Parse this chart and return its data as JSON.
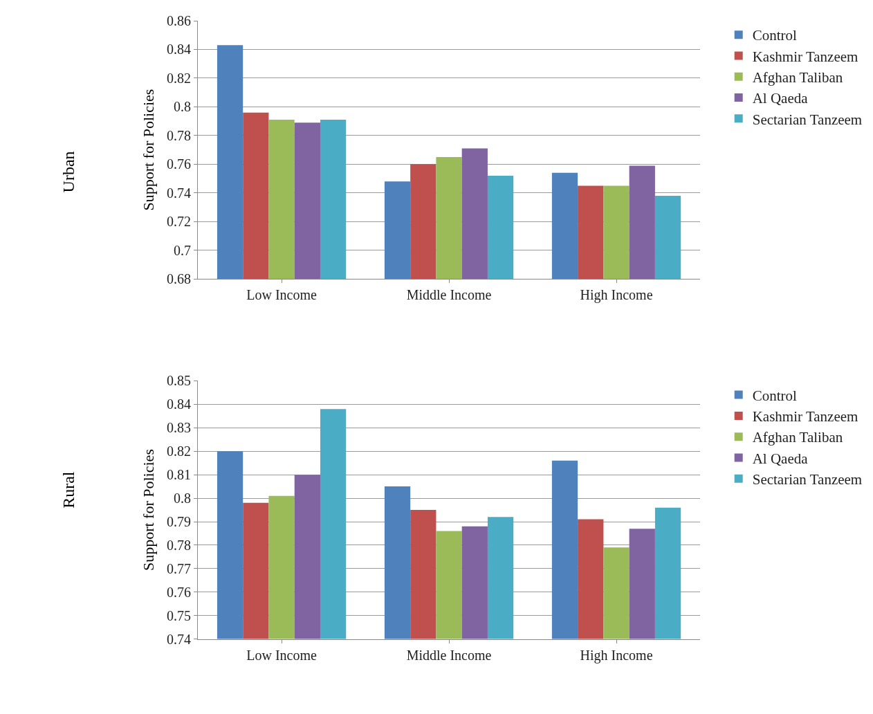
{
  "chart_data": [
    {
      "type": "bar",
      "ylabel": "Support for Policies",
      "annotations": [
        "Urban"
      ],
      "categories": [
        "Low Income",
        "Middle Income",
        "High Income"
      ],
      "series": [
        {
          "name": "Control",
          "color": "#4f81bd",
          "values": [
            0.843,
            0.748,
            0.754
          ]
        },
        {
          "name": "Kashmir Tanzeem",
          "color": "#c0504d",
          "values": [
            0.796,
            0.76,
            0.745
          ]
        },
        {
          "name": "Afghan Taliban",
          "color": "#9bbb59",
          "values": [
            0.791,
            0.765,
            0.745
          ]
        },
        {
          "name": "Al Qaeda",
          "color": "#8064a2",
          "values": [
            0.789,
            0.771,
            0.759
          ]
        },
        {
          "name": "Sectarian Tanzeem",
          "color": "#4bacc6",
          "values": [
            0.791,
            0.752,
            0.738
          ]
        }
      ],
      "ylim": [
        0.68,
        0.86
      ],
      "yticks": [
        0.68,
        0.7,
        0.72,
        0.74,
        0.76,
        0.78,
        0.8,
        0.82,
        0.84,
        0.86
      ],
      "grid": "y",
      "legend": "right"
    },
    {
      "type": "bar",
      "ylabel": "Support for Policies",
      "annotations": [
        "Rural"
      ],
      "categories": [
        "Low Income",
        "Middle Income",
        "High Income"
      ],
      "series": [
        {
          "name": "Control",
          "color": "#4f81bd",
          "values": [
            0.82,
            0.805,
            0.816
          ]
        },
        {
          "name": "Kashmir Tanzeem",
          "color": "#c0504d",
          "values": [
            0.798,
            0.795,
            0.791
          ]
        },
        {
          "name": "Afghan Taliban",
          "color": "#9bbb59",
          "values": [
            0.801,
            0.786,
            0.779
          ]
        },
        {
          "name": "Al Qaeda",
          "color": "#8064a2",
          "values": [
            0.81,
            0.788,
            0.787
          ]
        },
        {
          "name": "Sectarian Tanzeem",
          "color": "#4bacc6",
          "values": [
            0.838,
            0.792,
            0.796
          ]
        }
      ],
      "ylim": [
        0.74,
        0.85
      ],
      "yticks": [
        0.74,
        0.75,
        0.76,
        0.77,
        0.78,
        0.79,
        0.8,
        0.81,
        0.82,
        0.83,
        0.84,
        0.85
      ],
      "grid": "y",
      "legend": "right"
    }
  ]
}
